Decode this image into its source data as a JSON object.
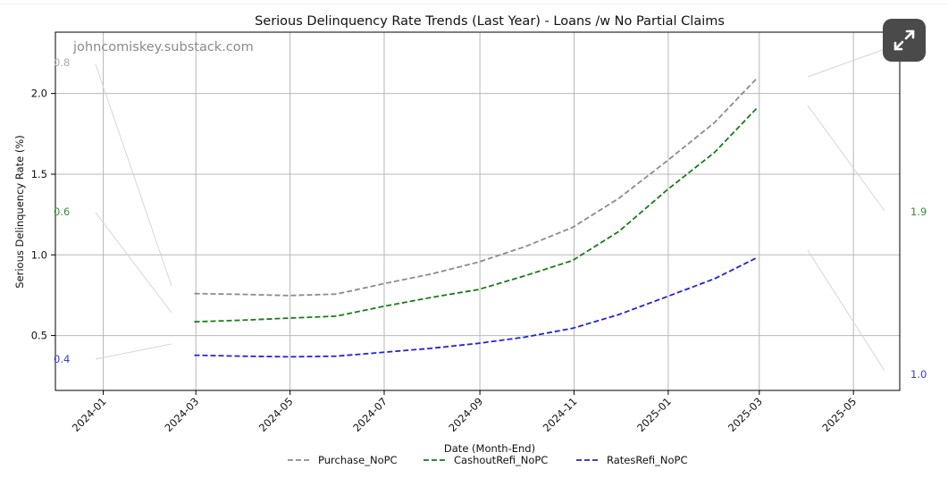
{
  "chart_data": {
    "type": "line",
    "title": "Serious Delinquency Rate Trends (Last Year) - Loans /w No Partial Claims",
    "xlabel": "Date (Month-End)",
    "ylabel": "Serious Delinquency Rate (%)",
    "watermark": "johncomiskey.substack.com",
    "x_ticks": [
      "2024-01",
      "2024-03",
      "2024-05",
      "2024-07",
      "2024-09",
      "2024-11",
      "2025-01",
      "2025-03",
      "2025-05"
    ],
    "y_ticks": [
      "0.5",
      "1.0",
      "1.5",
      "2.0"
    ],
    "xlim": [
      "2023-12-01",
      "2025-05-31"
    ],
    "ylim": [
      0.16,
      2.38
    ],
    "grid": true,
    "legend_position": "bottom-center",
    "x": [
      "2024-02-29",
      "2024-03-31",
      "2024-04-30",
      "2024-05-31",
      "2024-06-30",
      "2024-07-31",
      "2024-08-31",
      "2024-09-30",
      "2024-10-31",
      "2024-11-30",
      "2024-12-31",
      "2025-01-31",
      "2025-02-28"
    ],
    "series": [
      {
        "name": "Purchase_NoPC",
        "color": "#8c8c8c",
        "style": "dashed",
        "values": [
          0.76,
          0.755,
          0.748,
          0.757,
          0.82,
          0.88,
          0.955,
          1.05,
          1.17,
          1.35,
          1.58,
          1.82,
          2.1
        ]
      },
      {
        "name": "CashoutRefi_NoPC",
        "color": "#1a7a1a",
        "style": "dashed",
        "values": [
          0.585,
          0.595,
          0.608,
          0.62,
          0.68,
          0.735,
          0.785,
          0.87,
          0.965,
          1.145,
          1.4,
          1.635,
          1.915
        ]
      },
      {
        "name": "RatesRefi_NoPC",
        "color": "#2323d6",
        "style": "dashed",
        "values": [
          0.378,
          0.372,
          0.368,
          0.372,
          0.396,
          0.42,
          0.452,
          0.49,
          0.545,
          0.63,
          0.74,
          0.852,
          0.985
        ]
      }
    ],
    "annotations": {
      "left": [
        {
          "text": "0.8",
          "color": "#aaaaaa"
        },
        {
          "text": "0.6",
          "color": "#3a8a3a"
        },
        {
          "text": "0.4",
          "color": "#3a3ad0"
        }
      ],
      "right": [
        {
          "text": "1.9",
          "color": "#3a8a3a"
        },
        {
          "text": "1.0",
          "color": "#3a3ad0"
        }
      ]
    }
  },
  "controls": {
    "expand_icon": "expand-icon"
  }
}
